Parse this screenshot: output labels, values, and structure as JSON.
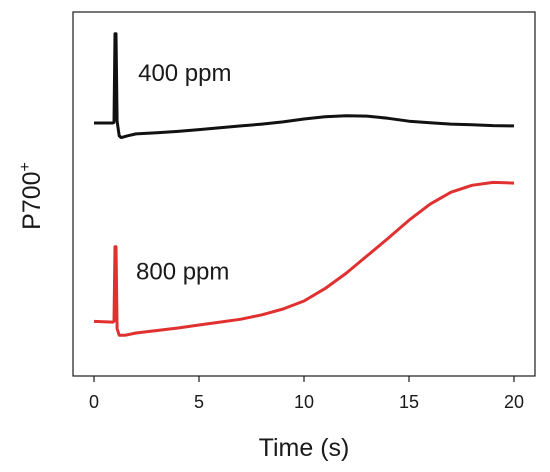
{
  "chart_data": {
    "type": "line",
    "title": "",
    "xlabel": "Time (s)",
    "ylabel": "P700",
    "ylabel_superscript": "+",
    "xlim": [
      -1,
      21
    ],
    "ylim": [
      0,
      10
    ],
    "xticks": [
      0,
      5,
      10,
      15,
      20
    ],
    "yticks_shown": false,
    "grid": false,
    "series": [
      {
        "color": "#111111",
        "points": [
          [
            0,
            6.95
          ],
          [
            0.9,
            6.95
          ],
          [
            0.95,
            6.97
          ],
          [
            1.0,
            9.4
          ],
          [
            1.05,
            9.4
          ],
          [
            1.1,
            7.0
          ],
          [
            1.2,
            6.6
          ],
          [
            1.3,
            6.55
          ],
          [
            1.6,
            6.6
          ],
          [
            2,
            6.65
          ],
          [
            3,
            6.68
          ],
          [
            4,
            6.72
          ],
          [
            5,
            6.77
          ],
          [
            6,
            6.82
          ],
          [
            7,
            6.87
          ],
          [
            8,
            6.92
          ],
          [
            9,
            6.98
          ],
          [
            10,
            7.06
          ],
          [
            11,
            7.12
          ],
          [
            12,
            7.15
          ],
          [
            13,
            7.14
          ],
          [
            14,
            7.08
          ],
          [
            15,
            7.0
          ],
          [
            16,
            6.96
          ],
          [
            17,
            6.92
          ],
          [
            18,
            6.9
          ],
          [
            19,
            6.88
          ],
          [
            20,
            6.87
          ]
        ]
      },
      {
        "color": "#e03030",
        "points": [
          [
            0,
            1.5
          ],
          [
            0.9,
            1.48
          ],
          [
            0.95,
            1.5
          ],
          [
            1.0,
            3.55
          ],
          [
            1.05,
            3.55
          ],
          [
            1.1,
            1.3
          ],
          [
            1.2,
            1.12
          ],
          [
            1.5,
            1.12
          ],
          [
            2,
            1.18
          ],
          [
            3,
            1.25
          ],
          [
            4,
            1.32
          ],
          [
            5,
            1.4
          ],
          [
            6,
            1.48
          ],
          [
            7,
            1.56
          ],
          [
            8,
            1.68
          ],
          [
            9,
            1.84
          ],
          [
            10,
            2.06
          ],
          [
            11,
            2.4
          ],
          [
            12,
            2.82
          ],
          [
            13,
            3.3
          ],
          [
            14,
            3.78
          ],
          [
            15,
            4.28
          ],
          [
            16,
            4.72
          ],
          [
            17,
            5.05
          ],
          [
            18,
            5.24
          ],
          [
            19,
            5.32
          ],
          [
            20,
            5.3
          ]
        ]
      }
    ],
    "annotations": [
      {
        "text": "400 ppm",
        "x": 2.1,
        "y": 8.1
      },
      {
        "text": "800 ppm",
        "x": 2.0,
        "y": 2.65
      }
    ]
  }
}
